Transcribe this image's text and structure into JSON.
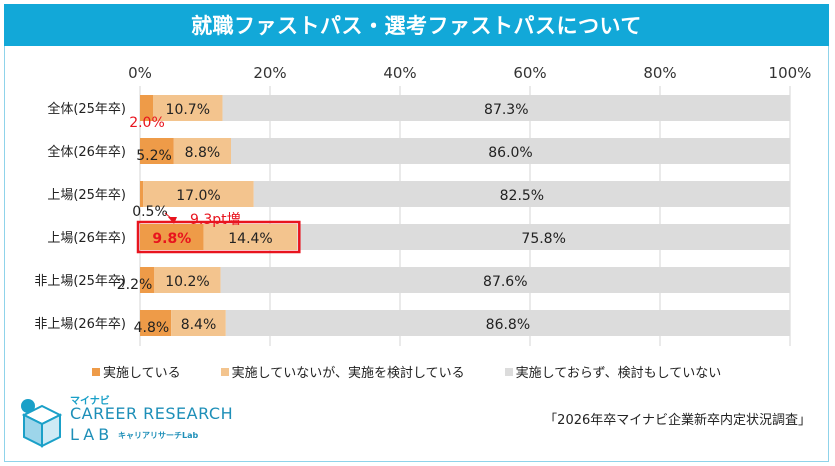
{
  "title": "就職ファストパス・選考ファストパスについて",
  "source": "「2026年卒マイナビ企業新卒内定状況調査」",
  "logo": {
    "brand": "マイナビ",
    "line1": "CAREER RESEARCH",
    "line2": "LAB",
    "sub": "キャリアリサーチLab"
  },
  "legend": [
    {
      "label": "実施している",
      "color": "#ee9b48"
    },
    {
      "label": "実施していないが、実施を検討している",
      "color": "#f3c48e"
    },
    {
      "label": "実施しておらず、検討もしていない",
      "color": "#dcdcdc"
    }
  ],
  "callout": "9.3pt増",
  "chart_data": {
    "type": "bar",
    "orientation": "horizontal",
    "stacked": true,
    "categories": [
      "全体(25年卒)",
      "全体(26年卒)",
      "上場(25年卒)",
      "上場(26年卒)",
      "非上場(25年卒)",
      "非上場(26年卒)"
    ],
    "x_ticks": [
      "0%",
      "20%",
      "40%",
      "60%",
      "80%",
      "100%"
    ],
    "xlim": [
      0,
      100
    ],
    "grid": true,
    "legend_position": "bottom",
    "series": [
      {
        "name": "実施している",
        "values": [
          2.0,
          5.2,
          0.5,
          9.8,
          2.2,
          4.8
        ],
        "labels": [
          "2.0%",
          "5.2%",
          "0.5%",
          "9.8%",
          "2.2%",
          "4.8%"
        ],
        "color": "#ee9b48"
      },
      {
        "name": "実施していないが、実施を検討している",
        "values": [
          10.7,
          8.8,
          17.0,
          14.4,
          10.2,
          8.4
        ],
        "labels": [
          "10.7%",
          "8.8%",
          "17.0%",
          "14.4%",
          "10.2%",
          "8.4%"
        ],
        "color": "#f3c48e"
      },
      {
        "name": "実施しておらず、検討もしていない",
        "values": [
          87.3,
          86.0,
          82.5,
          75.8,
          87.6,
          86.8
        ],
        "labels": [
          "87.3%",
          "86.0%",
          "82.5%",
          "75.8%",
          "87.6%",
          "86.8%"
        ],
        "color": "#dcdcdc"
      }
    ],
    "highlight_color": "#e8141e"
  }
}
